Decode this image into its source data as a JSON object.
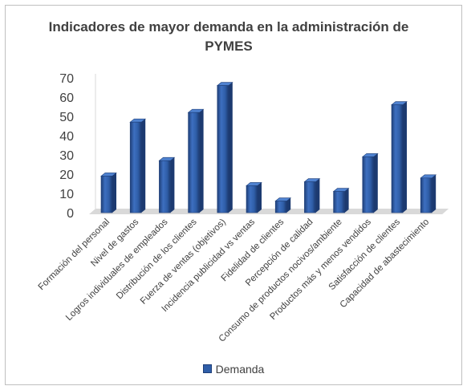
{
  "chart_data": {
    "type": "bar",
    "title": "Indicadores de mayor demanda en la administración de PYMES",
    "categories": [
      "Formación del personal",
      "Nivel de gastos",
      "Logros individuales de empleados",
      "Distribución de los clientes",
      "Fuerza de ventas (objetivos)",
      "Incidencia publicidad vs ventas",
      "Fidelidad de clientes",
      "Percepción de calidad",
      "Consumo de productos nocivos/ambiente",
      "Productos más y menos vendidos",
      "Satisfacción de clientes",
      "Capacidad de abastecimiento"
    ],
    "series": [
      {
        "name": "Demanda",
        "values": [
          19,
          47,
          27,
          52,
          66,
          14,
          6,
          16,
          11,
          29,
          56,
          18
        ]
      }
    ],
    "ylim": [
      0,
      70
    ],
    "yticks": [
      0,
      10,
      20,
      30,
      40,
      50,
      60,
      70
    ],
    "grid": false,
    "legend_position": "bottom",
    "colors": {
      "bar": "#2f5ea8",
      "bar_dark": "#1f3f78",
      "floor": "#d9d9d9",
      "text": "#404040"
    }
  }
}
